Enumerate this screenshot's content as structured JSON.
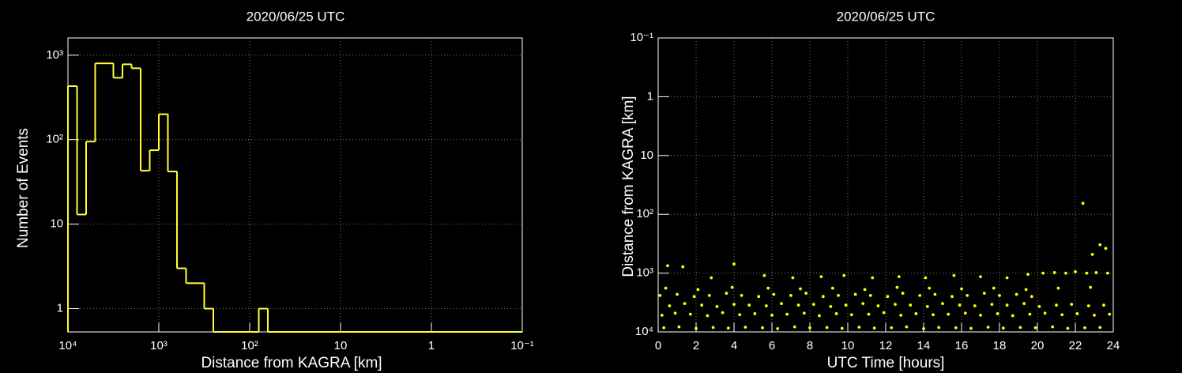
{
  "chart_data": [
    {
      "type": "histogram",
      "title": "2020/06/25 UTC",
      "xlabel": "Distance from KAGRA [km]",
      "ylabel": "Number of Events",
      "xlog": true,
      "ylog": true,
      "grid": true,
      "color": "#ffff33",
      "xlim": [
        10000,
        0.1
      ],
      "ylim": [
        0.53,
        1600
      ],
      "xticks": [
        {
          "value": 10000,
          "label": "10⁴"
        },
        {
          "value": 1000,
          "label": "10³"
        },
        {
          "value": 100,
          "label": "10²"
        },
        10,
        1,
        {
          "value": 0.1,
          "label": "10⁻¹"
        }
      ],
      "yticks": [
        1,
        10,
        {
          "value": 100,
          "label": "10²"
        },
        {
          "value": 1000,
          "label": "10³"
        }
      ],
      "bins": [
        10000,
        7943,
        6310,
        5012,
        3981,
        3162,
        2512,
        1995,
        1585,
        1259,
        1000,
        794.3,
        631,
        501.2,
        398.1,
        316.2,
        251.2,
        199.5,
        158.5,
        125.9,
        100,
        79.43,
        63.1,
        50.12,
        39.81,
        31.62,
        25.12,
        19.95,
        15.85,
        12.59,
        10,
        7.943,
        6.31,
        5.012,
        3.981,
        3.162,
        2.512,
        1.995,
        1.585,
        1.259,
        1,
        0.7943,
        0.631,
        0.5012,
        0.3981,
        0.3162,
        0.2512,
        0.1995,
        0.1585,
        0.1259,
        0.1
      ],
      "values": [
        430,
        13,
        95,
        800,
        800,
        540,
        780,
        700,
        43,
        75,
        200,
        42,
        3,
        2,
        2,
        1,
        0,
        0,
        0,
        0,
        0,
        1,
        0,
        0,
        0,
        0,
        0,
        0,
        0,
        0,
        0,
        0,
        0,
        0,
        0,
        0,
        0,
        0,
        0,
        0,
        0,
        0,
        0,
        0,
        0,
        0,
        0,
        0,
        0,
        0
      ]
    },
    {
      "type": "scatter",
      "title": "2020/06/25 UTC",
      "xlabel": "UTC Time [hours]",
      "ylabel": "Distance from KAGRA [km]",
      "xlog": false,
      "ylog": true,
      "grid": true,
      "color": "#ffff00",
      "xlim": [
        0,
        24
      ],
      "ylim": [
        10000,
        0.1
      ],
      "xticks": [
        0,
        2,
        4,
        6,
        8,
        10,
        12,
        14,
        16,
        18,
        20,
        22,
        24
      ],
      "yticks": [
        {
          "value": 10000,
          "label": "10⁴"
        },
        {
          "value": 1000,
          "label": "10³"
        },
        {
          "value": 100,
          "label": "10²"
        },
        10,
        1,
        {
          "value": 0.1,
          "label": "10⁻¹"
        }
      ],
      "x": [
        0.3,
        1.1,
        2.0,
        2.9,
        3.7,
        4.6,
        5.5,
        6.3,
        7.2,
        8.0,
        8.9,
        9.7,
        10.6,
        11.4,
        12.3,
        13.1,
        14.0,
        14.8,
        15.7,
        16.5,
        17.4,
        18.2,
        19.1,
        19.9,
        20.8,
        21.6,
        22.5,
        23.3,
        0.2,
        0.9,
        1.7,
        2.6,
        3.4,
        4.3,
        5.1,
        6.0,
        6.8,
        7.7,
        8.5,
        9.4,
        10.2,
        11.1,
        11.9,
        12.8,
        13.6,
        14.5,
        15.3,
        16.2,
        17.0,
        17.9,
        18.7,
        19.6,
        20.4,
        21.3,
        22.1,
        23.0,
        23.8,
        0.6,
        1.4,
        2.3,
        3.1,
        4.0,
        4.8,
        5.7,
        6.5,
        7.4,
        8.2,
        9.1,
        9.9,
        10.8,
        11.6,
        12.5,
        13.3,
        14.2,
        15.0,
        15.9,
        16.7,
        17.6,
        18.4,
        19.3,
        20.1,
        21.0,
        21.8,
        22.7,
        23.5,
        0.1,
        1.0,
        1.9,
        2.7,
        3.6,
        4.4,
        5.3,
        6.1,
        7.0,
        7.8,
        8.7,
        9.5,
        10.4,
        11.2,
        12.1,
        12.9,
        13.8,
        14.6,
        15.5,
        16.3,
        17.2,
        18.0,
        18.9,
        19.7,
        0.4,
        2.1,
        3.9,
        5.8,
        7.5,
        9.2,
        10.9,
        12.6,
        14.3,
        16.0,
        17.7,
        19.4,
        21.1,
        22.8,
        0.5,
        1.3,
        2.8,
        4.0,
        5.6,
        7.1,
        8.6,
        9.8,
        11.3,
        12.7,
        14.1,
        15.6,
        17.0,
        18.4,
        19.5,
        20.3,
        20.9,
        21.5,
        22.0,
        22.6,
        23.1,
        23.7,
        22.4,
        23.3,
        23.6,
        22.9
      ],
      "values": [
        8500,
        8200,
        8700,
        8400,
        8600,
        8300,
        8500,
        8800,
        8200,
        8500,
        8400,
        8700,
        8300,
        8600,
        8500,
        8200,
        8800,
        8400,
        8500,
        8700,
        8300,
        8600,
        8400,
        8500,
        8200,
        8700,
        8500,
        8400,
        5200,
        4800,
        5000,
        5300,
        4700,
        5100,
        4900,
        5200,
        5000,
        4800,
        5300,
        4900,
        5100,
        5000,
        4700,
        5200,
        4900,
        5100,
        5000,
        4800,
        5200,
        4900,
        5300,
        5000,
        4800,
        5100,
        4900,
        5200,
        5000,
        3600,
        3300,
        3500,
        3700,
        3400,
        3500,
        3600,
        3300,
        3500,
        3400,
        3700,
        3500,
        3300,
        3600,
        3400,
        3500,
        3700,
        3300,
        3500,
        3600,
        3400,
        3500,
        3300,
        3700,
        3500,
        3400,
        3600,
        3500,
        2400,
        2300,
        2500,
        2400,
        2200,
        2400,
        2500,
        2300,
        2400,
        2200,
        2500,
        2400,
        2300,
        2400,
        2500,
        2200,
        2400,
        2300,
        2500,
        2400,
        2200,
        2400,
        2300,
        2500,
        1800,
        1900,
        1750,
        1800,
        1850,
        1800,
        1900,
        1750,
        1800,
        1850,
        1800,
        1900,
        1800,
        1750,
        750,
        780,
        1200,
        700,
        1100,
        1200,
        1150,
        1100,
        1200,
        1150,
        1200,
        1100,
        1150,
        1200,
        1050,
        1000,
        980,
        1000,
        950,
        1000,
        980,
        1000,
        65,
        330,
        380,
        480
      ]
    }
  ]
}
